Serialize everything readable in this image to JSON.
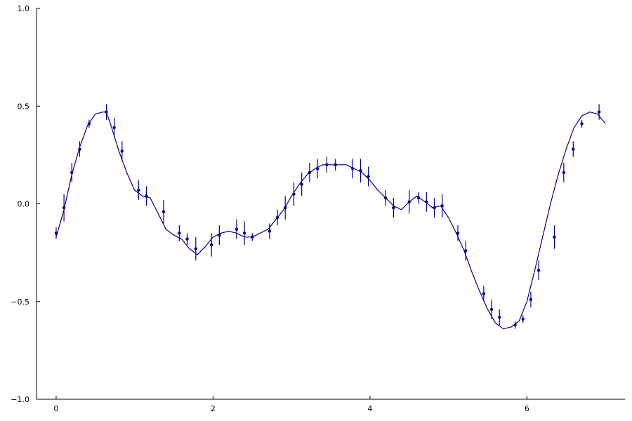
{
  "chart_data": {
    "type": "line",
    "title": "",
    "xlabel": "",
    "ylabel": "",
    "xlim": [
      -0.25,
      7.25
    ],
    "ylim": [
      -1.0,
      1.0
    ],
    "x_ticks": [
      {
        "value": 0,
        "label": "0"
      },
      {
        "value": 2,
        "label": "2"
      },
      {
        "value": 4,
        "label": "4"
      },
      {
        "value": 6,
        "label": "6"
      }
    ],
    "y_ticks": [
      {
        "value": -1.0,
        "label": "−1.0"
      },
      {
        "value": -0.5,
        "label": "−0.5"
      },
      {
        "value": 0.0,
        "label": "0.0"
      },
      {
        "value": 0.5,
        "label": "0.5"
      },
      {
        "value": 1.0,
        "label": "1.0"
      }
    ],
    "grid": false,
    "legend": "none",
    "color": "#00008b",
    "series": [
      {
        "x": [
          0.0,
          0.1,
          0.2,
          0.3,
          0.4,
          0.5,
          0.6,
          0.64,
          0.7,
          0.8,
          0.9,
          1.0,
          1.1,
          1.2,
          1.3,
          1.4,
          1.5,
          1.6,
          1.7,
          1.8,
          1.9,
          2.0,
          2.1,
          2.2,
          2.3,
          2.4,
          2.5,
          2.6,
          2.7,
          2.8,
          2.9,
          3.0,
          3.1,
          3.2,
          3.3,
          3.4,
          3.5,
          3.6,
          3.7,
          3.8,
          3.9,
          4.0,
          4.1,
          4.2,
          4.3,
          4.4,
          4.5,
          4.6,
          4.7,
          4.8,
          4.9,
          5.0,
          5.1,
          5.2,
          5.3,
          5.4,
          5.5,
          5.6,
          5.7,
          5.8,
          5.9,
          6.0,
          6.1,
          6.2,
          6.3,
          6.4,
          6.5,
          6.6,
          6.7,
          6.8,
          6.9,
          7.0
        ],
        "y": [
          -0.17,
          -0.03,
          0.15,
          0.29,
          0.4,
          0.46,
          0.47,
          0.47,
          0.4,
          0.27,
          0.16,
          0.07,
          0.04,
          0.03,
          -0.05,
          -0.13,
          -0.16,
          -0.18,
          -0.23,
          -0.26,
          -0.22,
          -0.17,
          -0.15,
          -0.14,
          -0.15,
          -0.17,
          -0.17,
          -0.15,
          -0.13,
          -0.08,
          -0.03,
          0.04,
          0.1,
          0.15,
          0.18,
          0.2,
          0.2,
          0.2,
          0.2,
          0.18,
          0.16,
          0.12,
          0.07,
          0.03,
          -0.01,
          -0.03,
          0.01,
          0.04,
          0.01,
          -0.02,
          -0.01,
          -0.07,
          -0.15,
          -0.24,
          -0.35,
          -0.45,
          -0.54,
          -0.61,
          -0.64,
          -0.63,
          -0.6,
          -0.5,
          -0.34,
          -0.17,
          0.0,
          0.15,
          0.28,
          0.39,
          0.45,
          0.47,
          0.46,
          0.41
        ]
      },
      {
        "x": [
          0.0,
          0.1,
          0.2,
          0.3,
          0.42,
          0.64,
          0.74,
          0.84,
          1.05,
          1.15,
          1.37,
          1.57,
          1.67,
          1.78,
          1.98,
          2.08,
          2.3,
          2.4,
          2.5,
          2.72,
          2.82,
          2.92,
          3.03,
          3.13,
          3.23,
          3.33,
          3.45,
          3.56,
          3.78,
          3.88,
          3.98,
          4.2,
          4.3,
          4.5,
          4.62,
          4.72,
          4.82,
          4.92,
          5.12,
          5.22,
          5.45,
          5.55,
          5.65,
          5.85,
          5.95,
          6.05,
          6.15,
          6.35,
          6.47,
          6.59,
          6.7,
          6.92
        ],
        "y": [
          -0.15,
          -0.02,
          0.16,
          0.28,
          0.41,
          0.47,
          0.39,
          0.27,
          0.07,
          0.04,
          -0.04,
          -0.15,
          -0.18,
          -0.23,
          -0.21,
          -0.16,
          -0.13,
          -0.15,
          -0.17,
          -0.14,
          -0.07,
          -0.02,
          0.05,
          0.1,
          0.16,
          0.18,
          0.2,
          0.2,
          0.18,
          0.17,
          0.14,
          0.03,
          -0.02,
          0.01,
          0.03,
          0.01,
          -0.02,
          -0.01,
          -0.15,
          -0.24,
          -0.46,
          -0.54,
          -0.58,
          -0.62,
          -0.59,
          -0.49,
          -0.34,
          -0.17,
          0.16,
          0.28,
          0.41,
          0.47
        ],
        "yerr": [
          0.03,
          0.07,
          0.05,
          0.04,
          0.02,
          0.04,
          0.05,
          0.05,
          0.05,
          0.05,
          0.06,
          0.04,
          0.03,
          0.06,
          0.06,
          0.05,
          0.05,
          0.06,
          0.02,
          0.04,
          0.04,
          0.06,
          0.06,
          0.06,
          0.05,
          0.05,
          0.04,
          0.03,
          0.05,
          0.06,
          0.05,
          0.04,
          0.05,
          0.06,
          0.03,
          0.05,
          0.05,
          0.06,
          0.04,
          0.05,
          0.04,
          0.05,
          0.04,
          0.02,
          0.02,
          0.04,
          0.05,
          0.06,
          0.05,
          0.04,
          0.02,
          0.04
        ]
      }
    ]
  }
}
